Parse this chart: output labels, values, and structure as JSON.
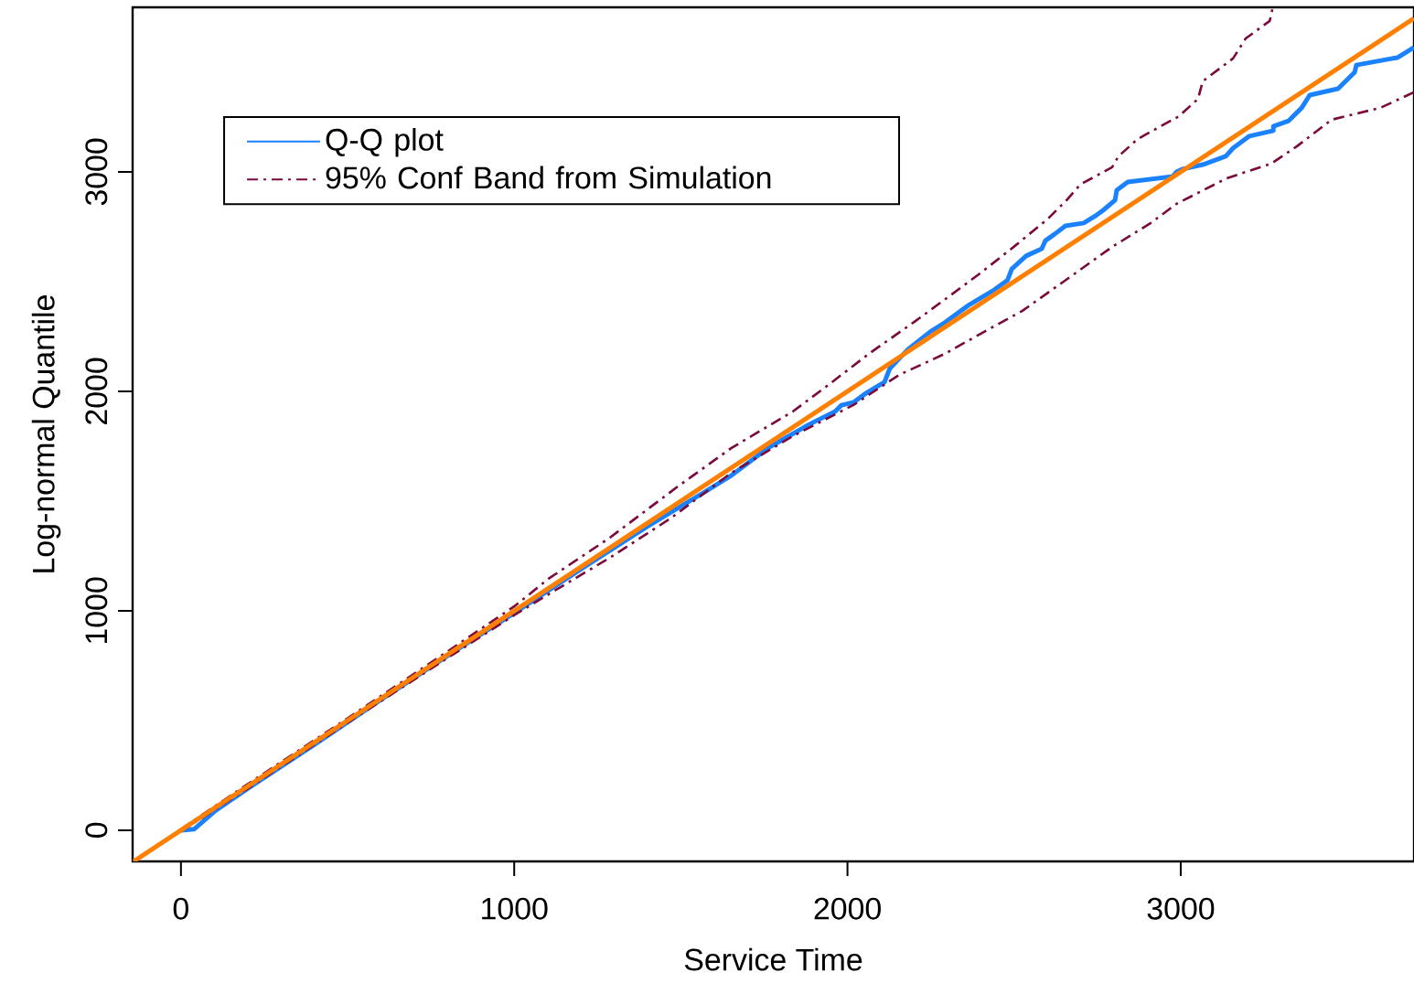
{
  "chart_data": {
    "type": "line",
    "xlabel": "Service Time",
    "ylabel": "Log-normal Quantile",
    "xlim": [
      -145,
      3700
    ],
    "ylim": [
      -142,
      3750
    ],
    "xticks": [
      0,
      1000,
      2000,
      3000
    ],
    "yticks": [
      0,
      1000,
      2000,
      3000
    ],
    "grid": false,
    "legend": "top left",
    "marker": "none",
    "series": [
      {
        "name": "Q-Q plot",
        "color": "#1a82ff",
        "line_style": "solid",
        "x": [
          0,
          40,
          100,
          200,
          400,
          600,
          800,
          1000,
          1200,
          1400,
          1562,
          1652,
          1762,
          1809,
          1872,
          1908,
          1963,
          1982,
          2018,
          2056,
          2111,
          2127,
          2182,
          2248,
          2292,
          2363,
          2440,
          2480,
          2493,
          2536,
          2583,
          2594,
          2622,
          2654,
          2709,
          2748,
          2767,
          2803,
          2808,
          2841,
          2976,
          2987,
          3006,
          3066,
          3135,
          3157,
          3206,
          3278,
          3278,
          3324,
          3363,
          3387,
          3472,
          3522,
          3527,
          3651,
          3700
        ],
        "values": [
          0,
          5,
          85,
          190,
          390,
          595,
          795,
          990,
          1190,
          1385,
          1533,
          1617,
          1742,
          1783,
          1838,
          1867,
          1908,
          1937,
          1950,
          1992,
          2042,
          2104,
          2192,
          2271,
          2313,
          2392,
          2462,
          2506,
          2558,
          2617,
          2650,
          2687,
          2717,
          2754,
          2767,
          2804,
          2825,
          2871,
          2917,
          2954,
          2979,
          3000,
          3013,
          3033,
          3071,
          3108,
          3163,
          3188,
          3208,
          3233,
          3292,
          3350,
          3379,
          3454,
          3487,
          3521,
          3567
        ]
      },
      {
        "name": "95% Conf Band from Simulation",
        "color": "#7a0a3c",
        "line_style": "dashdot",
        "x": [
          0,
          200,
          500,
          800,
          1000,
          1103,
          1287,
          1488,
          1652,
          1836,
          1946,
          2064,
          2201,
          2298,
          2394,
          2506,
          2602,
          2660,
          2698,
          2794,
          2813,
          2871,
          2995,
          3052,
          3066,
          3157,
          3195,
          3267,
          3275
        ],
        "values": [
          5,
          210,
          510,
          815,
          1020,
          1146,
          1333,
          1563,
          1742,
          1908,
          2033,
          2171,
          2317,
          2425,
          2533,
          2667,
          2787,
          2875,
          2942,
          3021,
          3071,
          3150,
          3254,
          3333,
          3413,
          3517,
          3608,
          3688,
          3742
        ]
      },
      {
        "color": "#7a0a3c",
        "line_style": "dashdot",
        "x": [
          0,
          200,
          500,
          800,
          1000,
          1103,
          1287,
          1469,
          1652,
          1836,
          2018,
          2155,
          2292,
          2394,
          2525,
          2679,
          2794,
          2910,
          2987,
          3138,
          3272,
          3349,
          3453,
          3599,
          3700
        ],
        "values": [
          -5,
          190,
          490,
          785,
          980,
          1075,
          1242,
          1421,
          1629,
          1796,
          1938,
          2075,
          2171,
          2258,
          2367,
          2533,
          2658,
          2767,
          2854,
          2971,
          3038,
          3117,
          3238,
          3292,
          3363
        ]
      },
      {
        "color": "#ff7f00",
        "line_style": "solid",
        "x": [
          -142,
          3700
        ],
        "values": [
          -142,
          3700
        ]
      }
    ]
  }
}
